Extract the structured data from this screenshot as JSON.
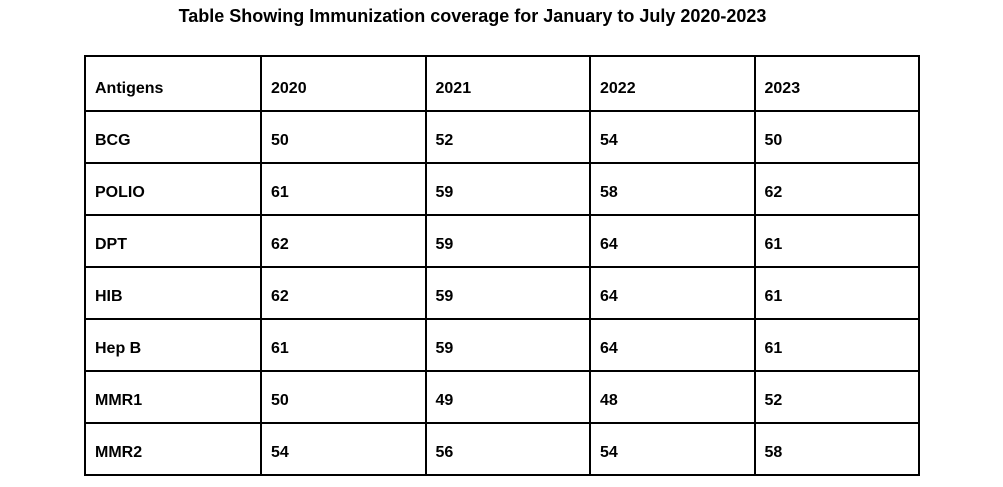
{
  "page": {
    "title": "Table Showing Immunization coverage for January to July 2020-2023",
    "background_color": "#ffffff",
    "text_color": "#000000",
    "border_color": "#000000"
  },
  "table": {
    "header": [
      "Antigens",
      "2020",
      "2021",
      "2022",
      "2023"
    ],
    "rows": [
      [
        "BCG",
        "50",
        "52",
        "54",
        "50"
      ],
      [
        "POLIO",
        "61",
        "59",
        "58",
        "62"
      ],
      [
        "DPT",
        "62",
        "59",
        "64",
        "61"
      ],
      [
        "HIB",
        "62",
        "59",
        "64",
        "61"
      ],
      [
        "Hep B",
        "61",
        "59",
        "64",
        "61"
      ],
      [
        "MMR1",
        "50",
        "49",
        "48",
        "52"
      ],
      [
        "MMR2",
        "54",
        "56",
        "54",
        "58"
      ]
    ]
  },
  "chart_data": {
    "type": "table",
    "title": "Table Showing Immunization coverage for January to July 2020-2023",
    "columns": [
      "Antigens",
      "2020",
      "2021",
      "2022",
      "2023"
    ],
    "categories": [
      "BCG",
      "POLIO",
      "DPT",
      "HIB",
      "Hep B",
      "MMR1",
      "MMR2"
    ],
    "series": [
      {
        "name": "2020",
        "values": [
          50,
          61,
          62,
          62,
          61,
          50,
          54
        ]
      },
      {
        "name": "2021",
        "values": [
          52,
          59,
          59,
          59,
          59,
          49,
          56
        ]
      },
      {
        "name": "2022",
        "values": [
          54,
          58,
          64,
          64,
          64,
          48,
          54
        ]
      },
      {
        "name": "2023",
        "values": [
          50,
          62,
          61,
          61,
          61,
          52,
          58
        ]
      }
    ],
    "legend_position": "none",
    "grid": true
  }
}
